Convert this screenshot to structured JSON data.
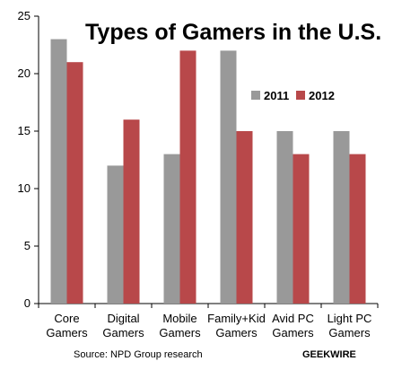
{
  "chart_data": {
    "type": "bar",
    "title": "Types of Gamers in the U.S.",
    "categories": [
      [
        "Core",
        "Gamers"
      ],
      [
        "Digital",
        "Gamers"
      ],
      [
        "Mobile",
        "Gamers"
      ],
      [
        "Family+Kid",
        "Gamers"
      ],
      [
        "Avid PC",
        "Gamers"
      ],
      [
        "Light PC",
        "Gamers"
      ]
    ],
    "series": [
      {
        "name": "2011",
        "color": "#999999",
        "values": [
          23,
          12,
          13,
          22,
          15,
          15
        ]
      },
      {
        "name": "2012",
        "color": "#b8484a",
        "values": [
          21,
          16,
          22,
          15,
          13,
          13
        ]
      }
    ],
    "ylim": [
      0,
      25
    ],
    "yticks": [
      "0",
      "5",
      "10",
      "15",
      "20",
      "25"
    ],
    "xlabel": "",
    "ylabel": "",
    "grid": false,
    "legend_position": "top-right"
  },
  "footer": {
    "source": "Source: NPD Group research",
    "brand": "GEEKWIRE"
  }
}
